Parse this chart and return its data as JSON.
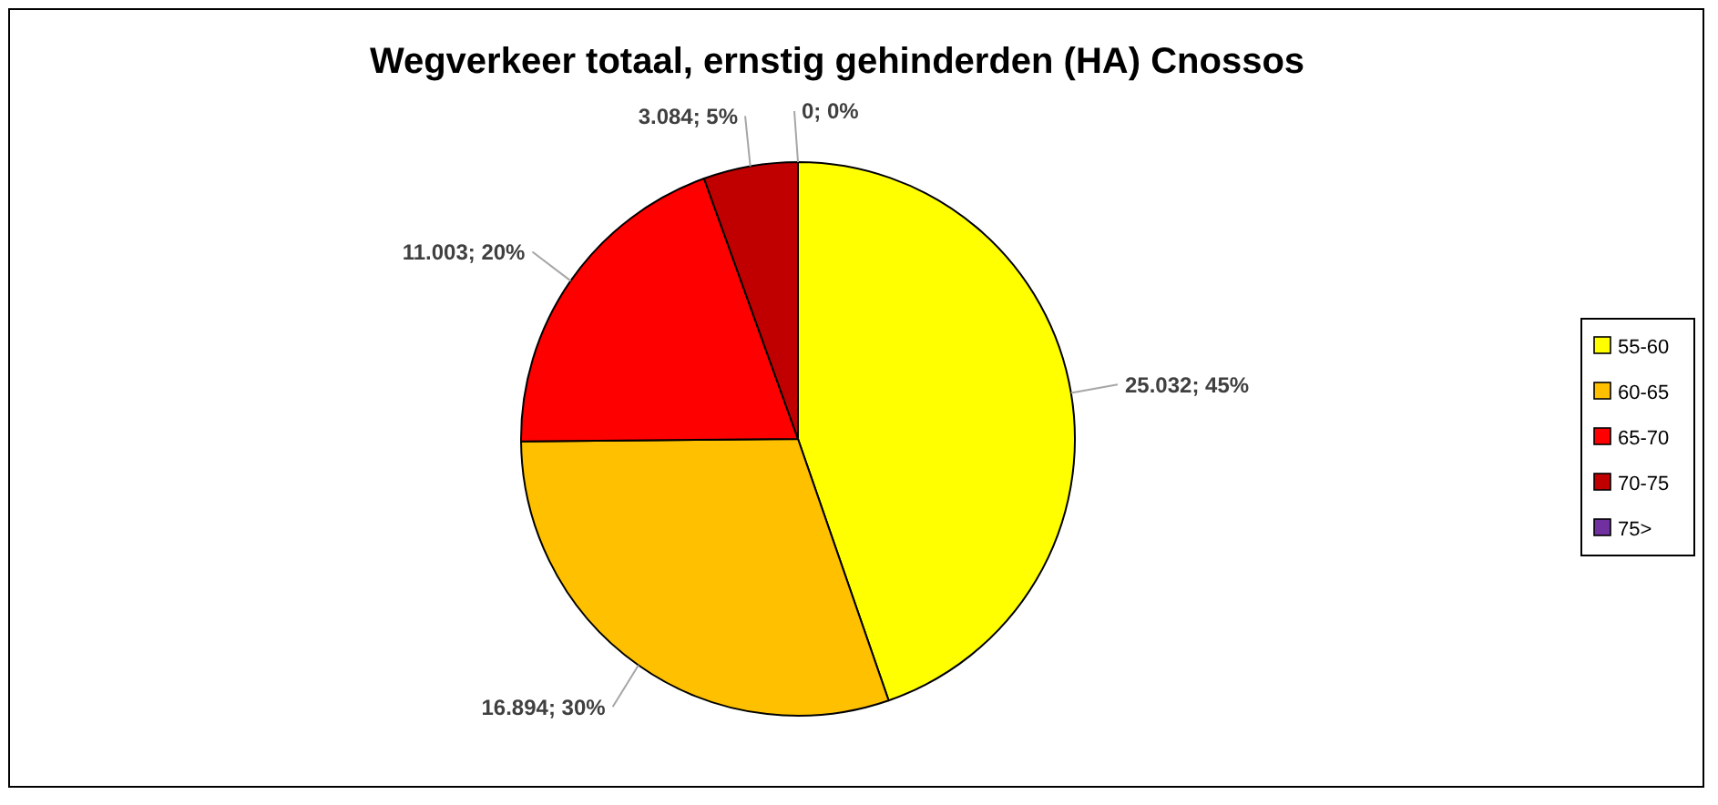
{
  "chart_data": {
    "type": "pie",
    "title": "Wegverkeer totaal, ernstig gehinderden (HA) Cnossos",
    "categories": [
      "55-60",
      "60-65",
      "65-70",
      "70-75",
      "75>"
    ],
    "values": [
      25032,
      16894,
      11003,
      3084,
      0
    ],
    "value_labels": [
      "25.032; 45%",
      "16.894; 30%",
      "11.003; 20%",
      "3.084; 5%",
      "0; 0%"
    ],
    "colors": [
      "#ffff00",
      "#ffc000",
      "#ff0000",
      "#c00000",
      "#7030a0"
    ],
    "legend": "right"
  }
}
